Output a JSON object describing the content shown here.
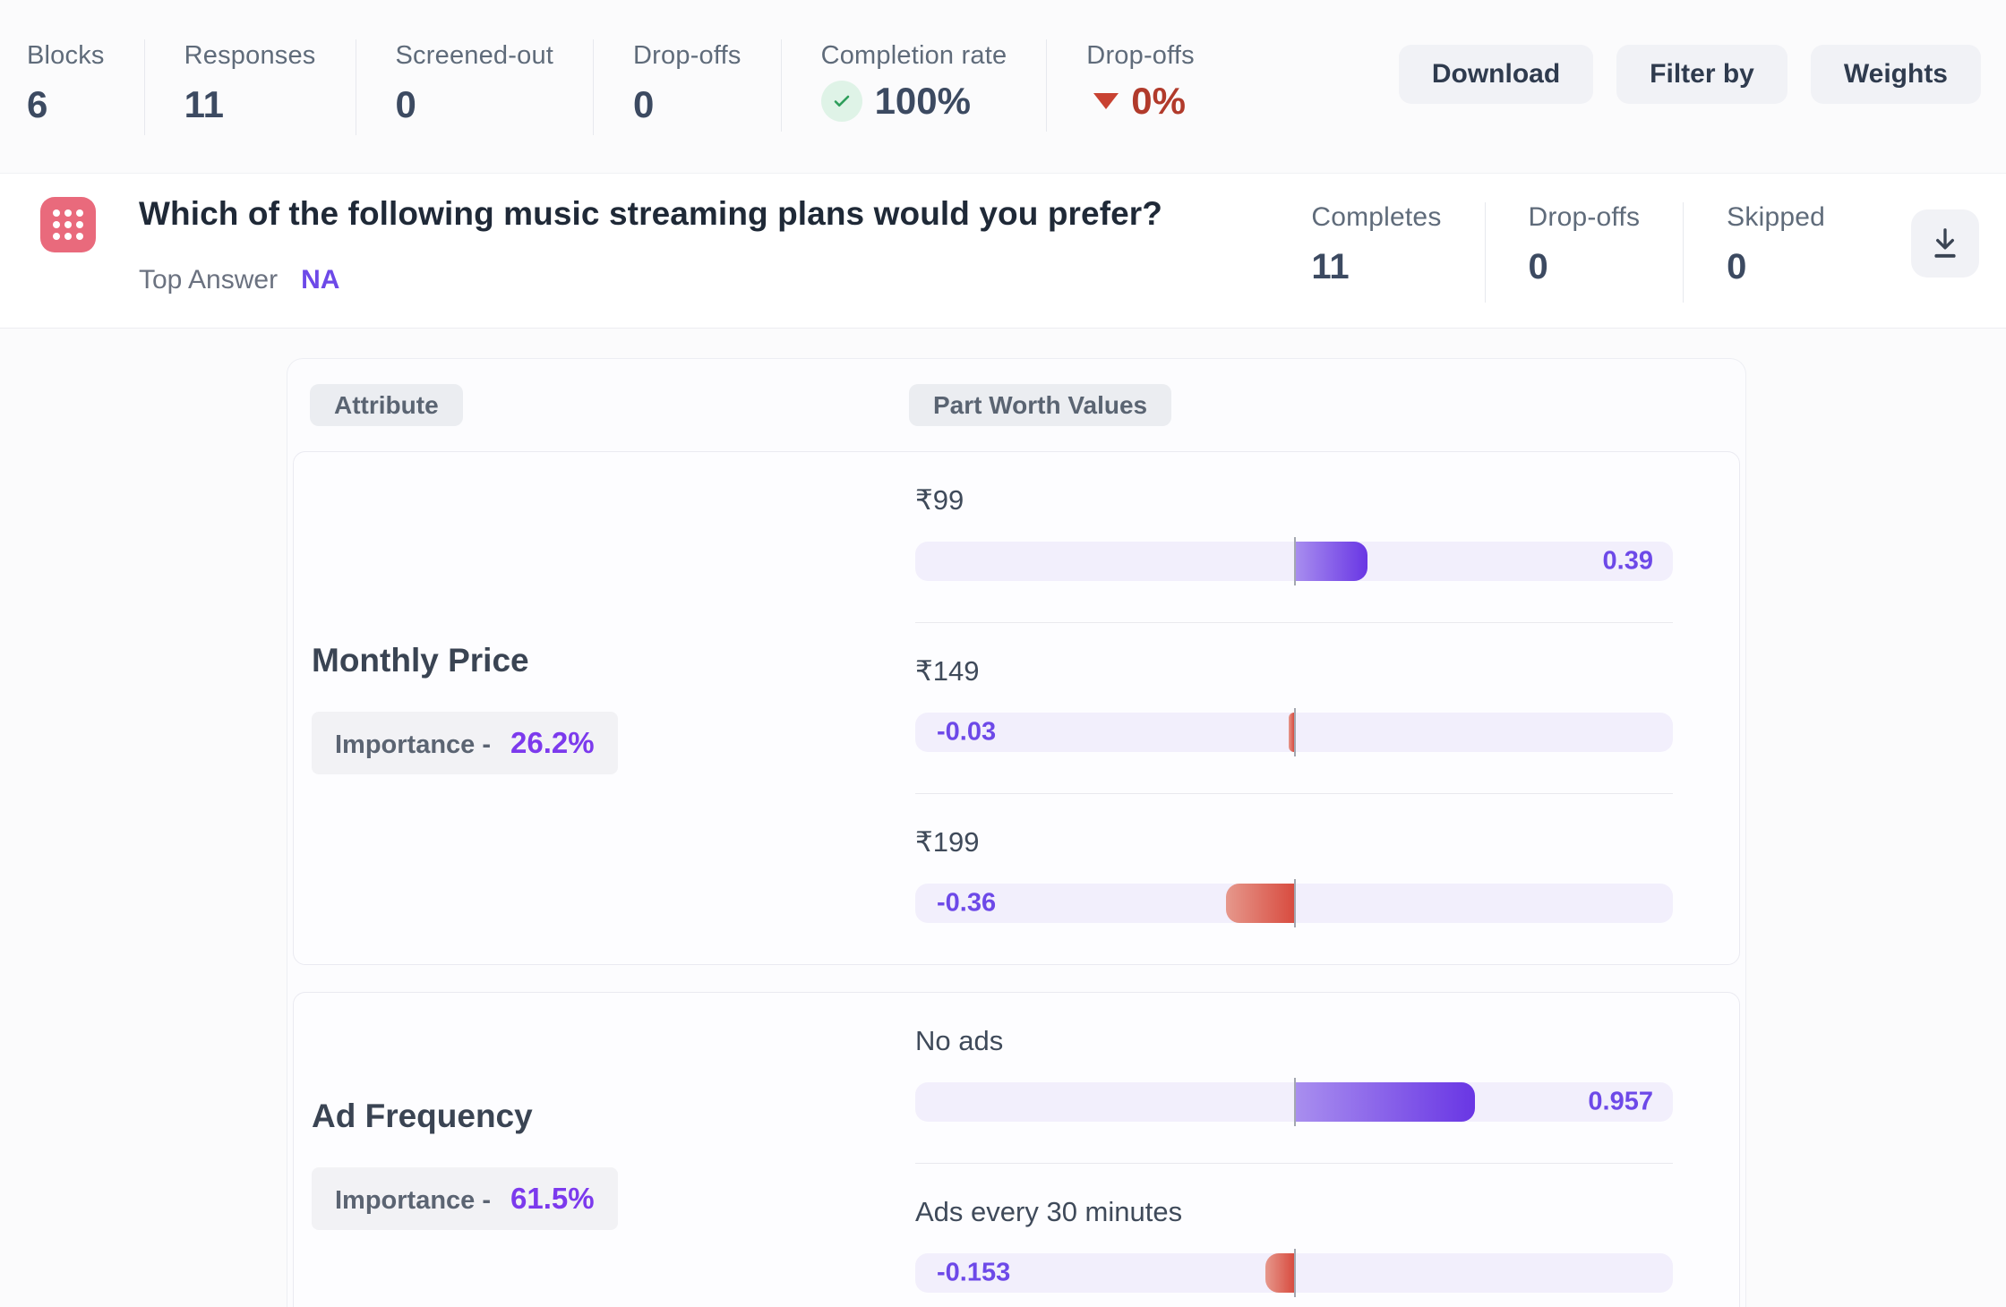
{
  "header": {
    "stats": [
      {
        "label": "Blocks",
        "value": "6"
      },
      {
        "label": "Responses",
        "value": "11"
      },
      {
        "label": "Screened-out",
        "value": "0"
      },
      {
        "label": "Drop-offs",
        "value": "0"
      }
    ],
    "completion": {
      "label": "Completion rate",
      "value": "100%",
      "icon": "check-circle-icon",
      "icon_color": "#2E9E5B"
    },
    "dropoff_rate": {
      "label": "Drop-offs",
      "value": "0%",
      "icon": "triangle-down-icon",
      "color": "#B13A2B"
    },
    "buttons": [
      {
        "label": "Download"
      },
      {
        "label": "Filter by"
      },
      {
        "label": "Weights"
      }
    ]
  },
  "question": {
    "icon": "grid-dots-icon",
    "icon_color": "#E96A7C",
    "title": "Which of the following music streaming plans would you prefer?",
    "top_answer_label": "Top Answer",
    "top_answer_value": "NA",
    "stats": [
      {
        "label": "Completes",
        "value": "11"
      },
      {
        "label": "Drop-offs",
        "value": "0"
      },
      {
        "label": "Skipped",
        "value": "0"
      }
    ],
    "download_icon": "download-icon"
  },
  "chart_data": {
    "type": "bar",
    "orientation": "horizontal-diverging",
    "column_headers": {
      "attribute": "Attribute",
      "values": "Part Worth Values"
    },
    "axis_range": [
      -2,
      2
    ],
    "grid": false,
    "colors": {
      "positive_gradient": [
        "#A98FEF",
        "#6936E4"
      ],
      "negative_gradient": [
        "#E6988C",
        "#D84C40"
      ],
      "track": "#F2EFFC",
      "value_text": "#6D49E8"
    },
    "attributes": [
      {
        "name": "Monthly Price",
        "importance_label": "Importance -",
        "importance": "26.2%",
        "divider_after_last": false,
        "levels": [
          {
            "label": "₹99",
            "value": 0.39,
            "display": "0.39"
          },
          {
            "label": "₹149",
            "value": -0.03,
            "display": "-0.03"
          },
          {
            "label": "₹199",
            "value": -0.36,
            "display": "-0.36"
          }
        ]
      },
      {
        "name": "Ad Frequency",
        "importance_label": "Importance -",
        "importance": "61.5%",
        "divider_after_last": true,
        "levels": [
          {
            "label": "No ads",
            "value": 0.957,
            "display": "0.957"
          },
          {
            "label": "Ads every 30 minutes",
            "value": -0.153,
            "display": "-0.153"
          }
        ]
      }
    ]
  }
}
